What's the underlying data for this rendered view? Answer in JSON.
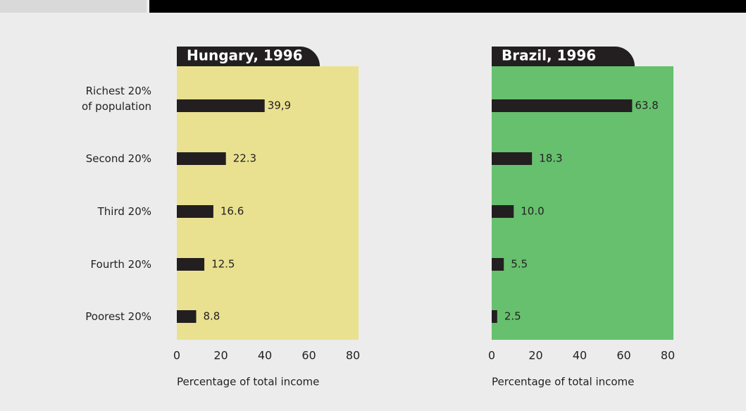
{
  "chart_data": [
    {
      "type": "bar",
      "orientation": "horizontal",
      "title": "Hungary, 1996",
      "categories": [
        "Richest 20%\nof population",
        "Second 20%",
        "Third 20%",
        "Fourth 20%",
        "Poorest 20%"
      ],
      "values": [
        39.9,
        22.3,
        16.6,
        12.5,
        8.8
      ],
      "value_labels": [
        "39,9",
        "22.3",
        "16.6",
        "12.5",
        "8.8"
      ],
      "color": "#231f20",
      "background": "#e9e190",
      "xlim": [
        0,
        80
      ],
      "xticks": [
        0,
        20,
        40,
        60,
        80
      ],
      "xlabel": "Percentage of total income"
    },
    {
      "type": "bar",
      "orientation": "horizontal",
      "title": "Brazil, 1996",
      "values": [
        63.8,
        18.3,
        10.0,
        5.5,
        2.5
      ],
      "value_labels": [
        "63.8",
        "18.3",
        "10.0",
        "5.5",
        "2.5"
      ],
      "color": "#231f20",
      "background": "#66c06e",
      "xlim": [
        0,
        80
      ],
      "xticks": [
        0,
        20,
        40,
        60,
        80
      ],
      "xlabel": "Percentage of total income"
    }
  ]
}
